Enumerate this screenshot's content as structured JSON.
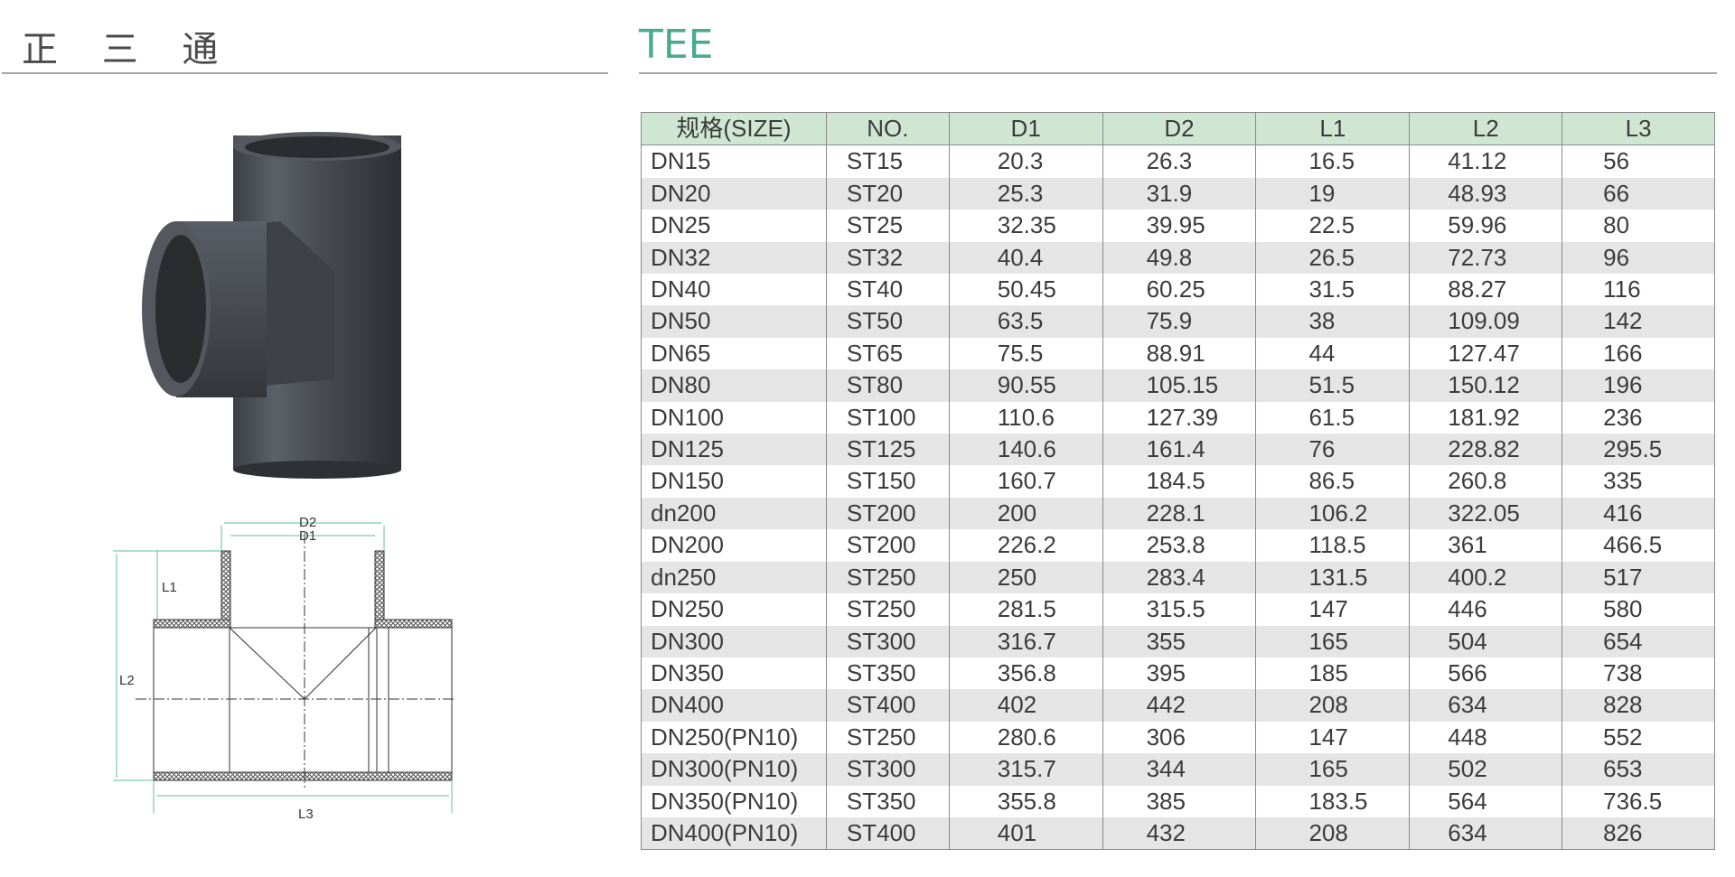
{
  "header": {
    "title_cn": "正 三 通",
    "title_en": "TEE"
  },
  "colors": {
    "accent": "#4aaa90",
    "header_bg": "#cfe6d3",
    "stripe": "#e5e5e5",
    "dimension_line": "#5bbfa6"
  },
  "diagram": {
    "labels": {
      "d2": "D2",
      "d1": "D1",
      "l1": "L1",
      "l2": "L2",
      "l3": "L3"
    }
  },
  "table": {
    "columns": [
      "规格(SIZE)",
      "NO.",
      "D1",
      "D2",
      "L1",
      "L2",
      "L3"
    ],
    "rows": [
      [
        "DN15",
        "ST15",
        "20.3",
        "26.3",
        "16.5",
        "41.12",
        "56"
      ],
      [
        "DN20",
        "ST20",
        "25.3",
        "31.9",
        "19",
        "48.93",
        "66"
      ],
      [
        "DN25",
        "ST25",
        "32.35",
        "39.95",
        "22.5",
        "59.96",
        "80"
      ],
      [
        "DN32",
        "ST32",
        "40.4",
        "49.8",
        "26.5",
        "72.73",
        "96"
      ],
      [
        "DN40",
        "ST40",
        "50.45",
        "60.25",
        "31.5",
        "88.27",
        "116"
      ],
      [
        "DN50",
        "ST50",
        "63.5",
        "75.9",
        "38",
        "109.09",
        "142"
      ],
      [
        "DN65",
        "ST65",
        "75.5",
        "88.91",
        "44",
        "127.47",
        "166"
      ],
      [
        "DN80",
        "ST80",
        "90.55",
        "105.15",
        "51.5",
        "150.12",
        "196"
      ],
      [
        "DN100",
        "ST100",
        "110.6",
        "127.39",
        "61.5",
        "181.92",
        "236"
      ],
      [
        "DN125",
        "ST125",
        "140.6",
        "161.4",
        "76",
        "228.82",
        "295.5"
      ],
      [
        "DN150",
        "ST150",
        "160.7",
        "184.5",
        "86.5",
        "260.8",
        "335"
      ],
      [
        "dn200",
        "ST200",
        "200",
        "228.1",
        "106.2",
        "322.05",
        "416"
      ],
      [
        "DN200",
        "ST200",
        "226.2",
        "253.8",
        "118.5",
        "361",
        "466.5"
      ],
      [
        "dn250",
        "ST250",
        "250",
        "283.4",
        "131.5",
        "400.2",
        "517"
      ],
      [
        "DN250",
        "ST250",
        "281.5",
        "315.5",
        "147",
        "446",
        "580"
      ],
      [
        "DN300",
        "ST300",
        "316.7",
        "355",
        "165",
        "504",
        "654"
      ],
      [
        "DN350",
        "ST350",
        "356.8",
        "395",
        "185",
        "566",
        "738"
      ],
      [
        "DN400",
        "ST400",
        "402",
        "442",
        "208",
        "634",
        "828"
      ],
      [
        "DN250(PN10)",
        "ST250",
        "280.6",
        "306",
        "147",
        "448",
        "552"
      ],
      [
        "DN300(PN10)",
        "ST300",
        "315.7",
        "344",
        "165",
        "502",
        "653"
      ],
      [
        "DN350(PN10)",
        "ST350",
        "355.8",
        "385",
        "183.5",
        "564",
        "736.5"
      ],
      [
        "DN400(PN10)",
        "ST400",
        "401",
        "432",
        "208",
        "634",
        "826"
      ]
    ]
  }
}
